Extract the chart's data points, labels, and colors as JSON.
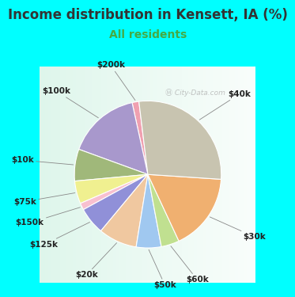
{
  "title": "Income distribution in Kensett, IA (%)",
  "subtitle": "All residents",
  "watermark": "Ⓜ City-Data.com",
  "labels": [
    "$200k",
    "$100k",
    "$10k",
    "$75k",
    "$150k",
    "$125k",
    "$20k",
    "$50k",
    "$60k",
    "$30k",
    "$40k"
  ],
  "values": [
    1.5,
    16.0,
    7.0,
    5.0,
    1.5,
    6.0,
    8.5,
    5.5,
    4.0,
    17.0,
    28.0
  ],
  "colors": [
    "#f0a0b0",
    "#a898cc",
    "#a0b87a",
    "#f0f090",
    "#f8c0d0",
    "#9090d8",
    "#f0c8a0",
    "#a0c8f0",
    "#c0e090",
    "#f0b070",
    "#c8c4b0"
  ],
  "bg_color_outer": "#00ffff",
  "bg_color_chart_left": "#d8f0e8",
  "bg_color_chart_right": "#f8fffe",
  "title_color": "#333333",
  "subtitle_color": "#44aa44",
  "startangle": 97,
  "label_fontsize": 7.5,
  "title_fontsize": 12,
  "subtitle_fontsize": 10,
  "label_color": "#222222"
}
